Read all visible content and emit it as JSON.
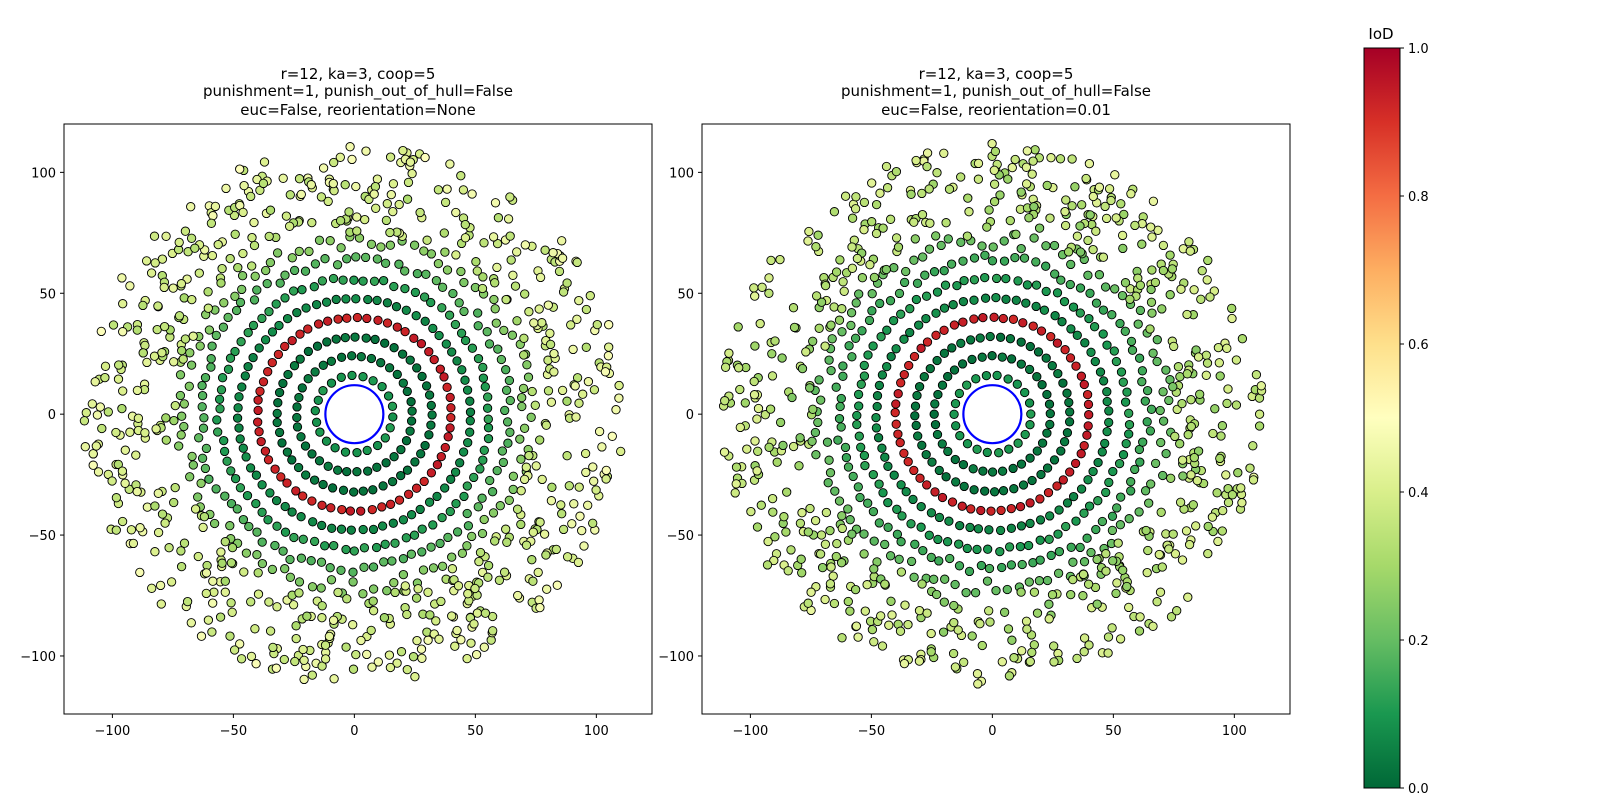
{
  "chart_data": [
    {
      "type": "scatter",
      "title_lines": [
        "r=12, ka=3, coop=5",
        "punishment=1, punish_out_of_hull=False",
        "euc=False, reorientation=None"
      ],
      "xlabel": "",
      "ylabel": "",
      "xlim": [
        -120,
        123
      ],
      "ylim": [
        -124,
        120
      ],
      "xticks": [
        -100,
        -50,
        0,
        50,
        100
      ],
      "yticks": [
        -100,
        -50,
        0,
        50,
        100
      ],
      "grid": false,
      "reference_circle": {
        "radius": 12,
        "color": "#0000ff"
      },
      "rings": [
        {
          "radius": 16,
          "iod": 0.1,
          "count": 22,
          "jitter": 0.2
        },
        {
          "radius": 24,
          "iod": 0.03,
          "count": 36,
          "jitter": 0.2
        },
        {
          "radius": 32,
          "iod": 0.03,
          "count": 48,
          "jitter": 0.2
        },
        {
          "radius": 40,
          "iod": 0.93,
          "count": 60,
          "jitter": 0.2
        },
        {
          "radius": 48,
          "iod": 0.07,
          "count": 70,
          "jitter": 0.3
        },
        {
          "radius": 56,
          "iod": 0.12,
          "count": 82,
          "jitter": 1.0
        },
        {
          "radius": 64,
          "iod": 0.18,
          "count": 94,
          "jitter": 2.0
        },
        {
          "radius": 72,
          "iod": 0.25,
          "count": 105,
          "jitter": 3.0
        }
      ],
      "outer_scatter": {
        "r_min": 74,
        "r_max": 112,
        "count": 640,
        "iod_min": 0.27,
        "iod_max": 0.5
      }
    },
    {
      "type": "scatter",
      "title_lines": [
        "r=12, ka=3, coop=5",
        "punishment=1, punish_out_of_hull=False",
        "euc=False, reorientation=0.01"
      ],
      "xlabel": "",
      "ylabel": "",
      "xlim": [
        -120,
        123
      ],
      "ylim": [
        -124,
        120
      ],
      "xticks": [
        -100,
        -50,
        0,
        50,
        100
      ],
      "yticks": [
        -100,
        -50,
        0,
        50,
        100
      ],
      "grid": false,
      "reference_circle": {
        "radius": 12,
        "color": "#0000ff"
      },
      "rings": [
        {
          "radius": 16,
          "iod": 0.1,
          "count": 22,
          "jitter": 0.2
        },
        {
          "radius": 24,
          "iod": 0.03,
          "count": 36,
          "jitter": 0.2
        },
        {
          "radius": 32,
          "iod": 0.03,
          "count": 48,
          "jitter": 0.2
        },
        {
          "radius": 40,
          "iod": 0.93,
          "count": 60,
          "jitter": 0.2
        },
        {
          "radius": 48,
          "iod": 0.07,
          "count": 70,
          "jitter": 0.3
        },
        {
          "radius": 56,
          "iod": 0.11,
          "count": 82,
          "jitter": 1.0
        },
        {
          "radius": 64,
          "iod": 0.15,
          "count": 94,
          "jitter": 2.0
        },
        {
          "radius": 72,
          "iod": 0.2,
          "count": 105,
          "jitter": 3.0
        }
      ],
      "outer_scatter": {
        "r_min": 74,
        "r_max": 112,
        "count": 640,
        "iod_min": 0.22,
        "iod_max": 0.45
      }
    }
  ],
  "colorbar": {
    "title": "IoD",
    "range": [
      0.0,
      1.0
    ],
    "ticks": [
      "0.0",
      "0.2",
      "0.4",
      "0.6",
      "0.8",
      "1.0"
    ],
    "colormap": "RdYlGn_r",
    "stops": [
      "#006837",
      "#1a9850",
      "#66bd63",
      "#a6d96a",
      "#d9ef8b",
      "#ffffbf",
      "#fee08b",
      "#fdae61",
      "#f46d43",
      "#d73027",
      "#a50026"
    ]
  }
}
